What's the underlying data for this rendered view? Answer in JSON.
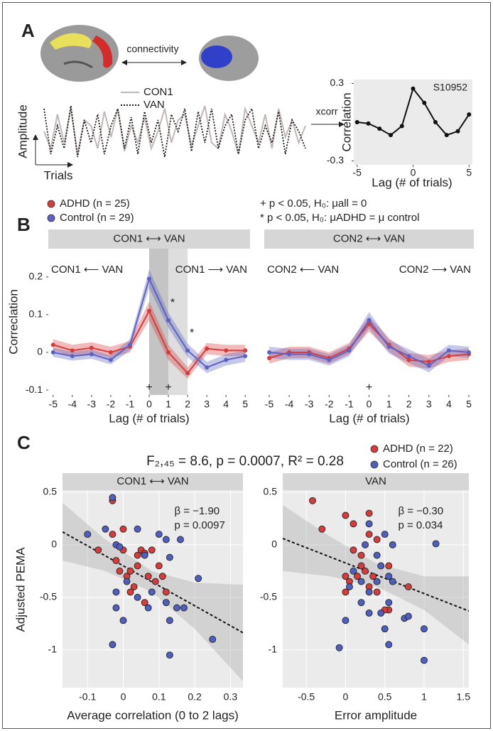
{
  "panel_labels": [
    "A",
    "B",
    "C"
  ],
  "diagram": {
    "link_label": "connectivity",
    "transform_label": "xcorr"
  },
  "chart_data": [
    {
      "type": "line",
      "x_label": "Trials",
      "y_label": "Amplitude",
      "ylim": [
        0,
        1
      ],
      "series": [
        {
          "name": "CON1",
          "color": "#c2b6b6",
          "values": [
            0.5,
            0.2,
            0.8,
            0.3,
            0.9,
            0.1,
            0.7,
            0.6,
            0.2,
            0.85,
            0.4,
            0.9,
            0.15,
            0.6,
            0.3,
            0.75,
            0.2,
            0.5,
            0.9,
            0.3,
            0.7,
            0.8,
            0.25,
            0.6,
            0.95,
            0.3,
            0.2,
            0.8,
            0.5,
            0.1,
            0.9,
            0.6,
            0.3,
            0.8,
            0.2,
            0.9,
            0.4,
            0.7,
            0.3,
            0.6
          ]
        },
        {
          "name": "VAN",
          "color": "#1a1a1a",
          "dash": true,
          "values": [
            0.9,
            0.1,
            0.6,
            0.2,
            0.95,
            0.05,
            0.7,
            0.3,
            0.8,
            0.1,
            0.6,
            0.9,
            0.2,
            0.75,
            0.1,
            0.85,
            0.3,
            0.7,
            0.05,
            0.8,
            0.5,
            0.9,
            0.15,
            0.85,
            0.3,
            0.9,
            0.2,
            0.6,
            0.8,
            0.1,
            0.7,
            0.9,
            0.2,
            0.6,
            0.3,
            0.85,
            0.1,
            0.7,
            0.5,
            0.2
          ]
        }
      ]
    },
    {
      "type": "line",
      "title": "S10952",
      "x_label": "Lag (# of trials)",
      "y_label": "Correlation",
      "background": "#ebebeb",
      "markers": true,
      "x": [
        -5,
        -4,
        -3,
        -2,
        -1,
        0,
        1,
        2,
        3,
        4,
        5
      ],
      "xlim": [
        -5.3,
        5.3
      ],
      "ylim": [
        -0.33,
        0.33
      ],
      "xticks": [
        -5,
        0,
        5
      ],
      "yticks": [
        -0.3,
        0.3
      ],
      "series": [
        {
          "color": "#111111",
          "values": [
            0.0,
            -0.01,
            -0.05,
            -0.1,
            -0.03,
            0.26,
            0.15,
            0.0,
            -0.1,
            -0.07,
            0.06
          ]
        }
      ]
    },
    {
      "type": "line",
      "strip_title": "CON1 ⟷ VAN",
      "left_label": "CON1 ⟵ VAN",
      "right_label": "CON1 ⟶ VAN",
      "x_label": "Lag (# of trials)",
      "y_label": "Correclation",
      "markers": true,
      "x": [
        -5,
        -4,
        -3,
        -2,
        -1,
        0,
        1,
        2,
        3,
        4,
        5
      ],
      "xlim": [
        -5.25,
        5.25
      ],
      "ylim": [
        -0.113,
        0.275
      ],
      "xticks": [
        -5,
        -4,
        -3,
        -2,
        -1,
        0,
        1,
        2,
        3,
        4,
        5
      ],
      "yticks": [
        -0.1,
        0,
        0.1,
        0.2
      ],
      "shaded_x": [
        0,
        1,
        2
      ],
      "bottom_marks": [
        {
          "x": 0,
          "text": "+"
        },
        {
          "x": 1,
          "text": "+"
        }
      ],
      "series_marks": [
        {
          "x": 1,
          "text": "*"
        },
        {
          "x": 2,
          "text": "*"
        }
      ],
      "notes": [
        "+ p < 0.05, H₀: μall = 0",
        "* p < 0.05, H₀: μADHD = μ control"
      ],
      "series": [
        {
          "name": "ADHD (n = 25)",
          "color": "#d63c3c",
          "values": [
            0.02,
            0.005,
            0.012,
            0.0,
            0.015,
            0.11,
            0.0,
            -0.055,
            0.01,
            0.005,
            0.005
          ],
          "error": [
            0.015,
            0.015,
            0.015,
            0.015,
            0.015,
            0.025,
            0.02,
            0.015,
            0.015,
            0.015,
            0.015
          ]
        },
        {
          "name": "Control (n = 29)",
          "color": "#5b62c4",
          "values": [
            0.0,
            -0.01,
            -0.005,
            -0.02,
            0.02,
            0.195,
            0.085,
            0.005,
            -0.04,
            -0.02,
            -0.01
          ],
          "error": [
            0.012,
            0.012,
            0.012,
            0.012,
            0.015,
            0.025,
            0.02,
            0.018,
            0.015,
            0.015,
            0.015
          ]
        }
      ]
    },
    {
      "type": "line",
      "strip_title": "CON2 ⟷ VAN",
      "left_label": "CON2 ⟵ VAN",
      "right_label": "CON2 ⟶ VAN",
      "x_label": "Lag (# of trials)",
      "markers": true,
      "x": [
        -5,
        -4,
        -3,
        -2,
        -1,
        0,
        1,
        2,
        3,
        4,
        5
      ],
      "xlim": [
        -5.25,
        5.25
      ],
      "ylim": [
        -0.113,
        0.275
      ],
      "xticks": [
        -5,
        -4,
        -3,
        -2,
        -1,
        0,
        1,
        2,
        3,
        4,
        5
      ],
      "bottom_marks": [
        {
          "x": 0,
          "text": "+"
        }
      ],
      "series": [
        {
          "color": "#d63c3c",
          "values": [
            -0.015,
            0.0,
            0.0,
            -0.015,
            0.01,
            0.075,
            0.02,
            -0.02,
            -0.025,
            -0.01,
            -0.005
          ],
          "error": [
            0.015,
            0.015,
            0.015,
            0.015,
            0.015,
            0.02,
            0.018,
            0.018,
            0.018,
            0.015,
            0.015
          ]
        },
        {
          "color": "#5b62c4",
          "values": [
            0.0,
            -0.005,
            -0.005,
            -0.02,
            0.005,
            0.085,
            0.015,
            -0.01,
            -0.035,
            0.005,
            0.0
          ],
          "error": [
            0.015,
            0.015,
            0.015,
            0.015,
            0.015,
            0.022,
            0.018,
            0.018,
            0.018,
            0.015,
            0.015
          ]
        }
      ]
    },
    {
      "type": "scatter",
      "title": "F₂,₄₅ = 8.6, p = 0.0007, R² = 0.28",
      "strip_title": "CON1 ⟷ VAN",
      "x_label": "Average correlation (0 to 2 lags)",
      "y_label": "Adjusted PEMA",
      "background": "#ebebeb",
      "grid": true,
      "xlim": [
        -0.17,
        0.335
      ],
      "ylim": [
        -1.36,
        0.52
      ],
      "xticks": [
        -0.1,
        0,
        0.1,
        0.2,
        0.3
      ],
      "yticks": [
        -1,
        -0.5,
        0,
        0.5
      ],
      "stats": [
        "β = −1.90",
        "p = 0.0097"
      ],
      "fit": {
        "x": [
          -0.17,
          0.335
        ],
        "y": [
          0.123,
          -0.837
        ]
      },
      "band": {
        "x": [
          -0.17,
          -0.05,
          0.08,
          0.2,
          0.335
        ],
        "lower": [
          -0.15,
          -0.25,
          -0.45,
          -0.8,
          -1.3
        ],
        "upper": [
          0.4,
          0.05,
          -0.25,
          -0.36,
          -0.38
        ]
      },
      "series": [
        {
          "name": "ADHD (n = 22)",
          "color": "#d63c3c",
          "x": [
            -0.03,
            -0.03,
            -0.07,
            0.0,
            0.02,
            0.04,
            0.05,
            0.06,
            0.08,
            0.1,
            0.09,
            0.03,
            0.01,
            -0.02,
            0.0,
            0.02,
            0.06,
            -0.01,
            0.12,
            0.07,
            0.11,
            0.04
          ],
          "y": [
            0.42,
            0.1,
            -0.05,
            -0.05,
            -0.25,
            -0.2,
            -0.05,
            -0.08,
            -0.05,
            -0.2,
            -0.35,
            -0.4,
            -0.3,
            -0.15,
            0.15,
            -0.45,
            -0.55,
            -0.25,
            -0.45,
            -0.3,
            -0.3,
            -0.1
          ]
        },
        {
          "name": "Control (n = 26)",
          "color": "#4f5fbf",
          "x": [
            -0.03,
            -0.05,
            -0.1,
            -0.02,
            -0.01,
            0.04,
            0.1,
            0.12,
            0.16,
            0.13,
            0.06,
            0.01,
            -0.02,
            -0.02,
            0.04,
            0.07,
            0.08,
            0.12,
            0.15,
            0.21,
            0.17,
            0.13,
            0.25,
            0.13,
            -0.03,
            0.0
          ],
          "y": [
            0.45,
            0.15,
            0.1,
            0.0,
            -0.02,
            0.15,
            0.1,
            0.05,
            0.05,
            -0.12,
            -0.1,
            -0.35,
            -0.45,
            -0.6,
            -0.5,
            -0.6,
            -0.45,
            -0.55,
            -0.6,
            -0.32,
            -0.6,
            -0.72,
            -0.9,
            -1.05,
            -0.95,
            -0.72
          ]
        }
      ]
    },
    {
      "type": "scatter",
      "strip_title": "VAN",
      "x_label": "Error amplitude",
      "background": "#ebebeb",
      "grid": true,
      "xlim": [
        -0.8,
        1.57
      ],
      "ylim": [
        -1.36,
        0.52
      ],
      "xticks": [
        -0.5,
        0,
        0.5,
        1,
        1.5
      ],
      "yticks": [
        -1,
        -0.5,
        0,
        0.5
      ],
      "stats": [
        "β = −0.30",
        "p = 0.034"
      ],
      "fit": {
        "x": [
          -0.8,
          1.57
        ],
        "y": [
          0.06,
          -0.63
        ]
      },
      "band": {
        "x": [
          -0.8,
          -0.2,
          0.4,
          1.0,
          1.57
        ],
        "lower": [
          -0.25,
          -0.3,
          -0.4,
          -0.62,
          -0.95
        ],
        "upper": [
          0.38,
          0.08,
          -0.18,
          -0.3,
          -0.3
        ]
      },
      "series": [
        {
          "color": "#d63c3c",
          "x": [
            -0.42,
            0.0,
            0.1,
            0.3,
            -0.3,
            0.3,
            0.1,
            0.2,
            0.4,
            0.35,
            0.0,
            0.05,
            0.2,
            0.25,
            0.4,
            0.3,
            0.0,
            0.55,
            0.5,
            0.8,
            0.15,
            0.55
          ],
          "y": [
            0.42,
            0.28,
            0.2,
            0.3,
            0.15,
            0.1,
            -0.05,
            -0.1,
            0.05,
            -0.3,
            -0.3,
            -0.35,
            -0.2,
            -0.25,
            -0.45,
            -0.4,
            -0.45,
            -0.62,
            -0.62,
            -0.4,
            -0.3,
            -0.2
          ]
        },
        {
          "color": "#4f5fbf",
          "x": [
            0.3,
            0.25,
            0.5,
            0.6,
            1.15,
            0.4,
            0.4,
            0.45,
            0.55,
            0.6,
            0.2,
            0.1,
            0.05,
            0.2,
            0.3,
            0.3,
            0.55,
            0.5,
            0.75,
            0.8,
            0.0,
            -0.08,
            1.0,
            0.55,
            1.0,
            0.45
          ],
          "y": [
            0.2,
            0.0,
            0.1,
            0.0,
            0.01,
            -0.1,
            -0.35,
            -0.2,
            -0.3,
            -0.35,
            -0.35,
            -0.25,
            -0.4,
            -0.55,
            -0.45,
            -0.65,
            -0.55,
            -0.8,
            -0.7,
            -0.68,
            -0.72,
            -0.98,
            -0.8,
            -0.95,
            -1.1,
            -0.65
          ]
        }
      ]
    }
  ]
}
